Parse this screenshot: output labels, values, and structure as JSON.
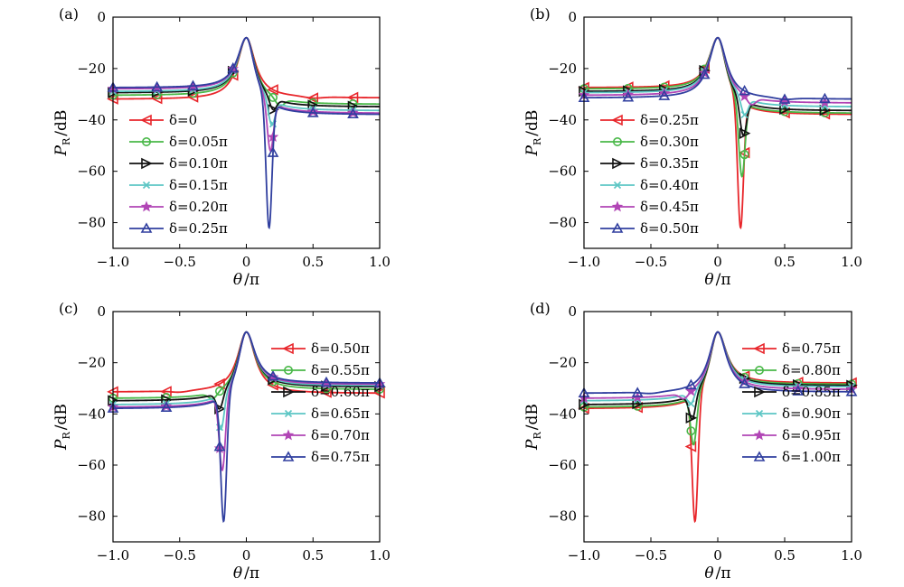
{
  "chart_data": [
    {
      "type": "line",
      "panel_label": "(a)",
      "xlabel": {
        "symbol": "θ",
        "unit": "/π"
      },
      "ylabel": {
        "symbol": "P",
        "subscript": "R",
        "unit": "/dB"
      },
      "xlim": [
        -1.0,
        1.0
      ],
      "ylim": [
        -90,
        0
      ],
      "xticks": [
        "−1.0",
        "−0.5",
        "0",
        "0.5",
        "1.0"
      ],
      "xtick_values": [
        -1.0,
        -0.5,
        0,
        0.5,
        1.0
      ],
      "yticks": [
        "0",
        "−20",
        "−40",
        "−60",
        "−80"
      ],
      "ytick_values": [
        0,
        -20,
        -40,
        -60,
        -80
      ],
      "legend_position": "left",
      "series": [
        {
          "name": "δ=0",
          "color": "#e8262b",
          "marker": "triangle-left",
          "left": -32,
          "right": -31.5,
          "min_x": 0.5,
          "min_y": -31.5,
          "markers_x": [
            -1.0,
            -0.67,
            -0.4,
            -0.1,
            0.2,
            0.5,
            0.8
          ]
        },
        {
          "name": "δ=0.05π",
          "color": "#49b848",
          "marker": "circle",
          "left": -30.5,
          "right": -34,
          "min_x": 0.25,
          "min_y": -34.5,
          "markers_x": [
            -1.0,
            -0.67,
            -0.4,
            -0.1,
            0.2,
            0.5,
            0.8
          ]
        },
        {
          "name": "δ=0.10π",
          "color": "#111111",
          "marker": "triangle-right",
          "left": -29.5,
          "right": -35,
          "min_x": 0.2,
          "min_y": -36,
          "markers_x": [
            -1.0,
            -0.67,
            -0.4,
            -0.1,
            0.2,
            0.5,
            0.8
          ]
        },
        {
          "name": "δ=0.15π",
          "color": "#5cc6c4",
          "marker": "x",
          "left": -29,
          "right": -36.5,
          "min_x": 0.19,
          "min_y": -42,
          "markers_x": [
            -1.0,
            -0.67,
            -0.4,
            -0.1,
            0.2,
            0.5,
            0.8
          ]
        },
        {
          "name": "δ=0.20π",
          "color": "#b145b5",
          "marker": "star",
          "left": -28,
          "right": -37.5,
          "min_x": 0.18,
          "min_y": -52,
          "markers_x": [
            -1.0,
            -0.67,
            -0.4,
            -0.1,
            0.2,
            0.5,
            0.8
          ]
        },
        {
          "name": "δ=0.25π",
          "color": "#303f9f",
          "marker": "triangle-up",
          "left": -27.5,
          "right": -38,
          "min_x": 0.17,
          "min_y": -82,
          "markers_x": [
            -1.0,
            -0.67,
            -0.4,
            -0.1,
            0.2,
            0.5,
            0.8
          ]
        }
      ]
    },
    {
      "type": "line",
      "panel_label": "(b)",
      "xlabel": {
        "symbol": "θ",
        "unit": "/π"
      },
      "ylabel": {
        "symbol": "P",
        "subscript": "R",
        "unit": "/dB"
      },
      "xlim": [
        -1.0,
        1.0
      ],
      "ylim": [
        -90,
        0
      ],
      "xticks": [
        "−1.0",
        "−0.5",
        "0",
        "0.5",
        "1.0"
      ],
      "xtick_values": [
        -1.0,
        -0.5,
        0,
        0.5,
        1.0
      ],
      "yticks": [
        "0",
        "−20",
        "−40",
        "−60",
        "−80"
      ],
      "ytick_values": [
        0,
        -20,
        -40,
        -60,
        -80
      ],
      "legend_position": "left",
      "series": [
        {
          "name": "δ=0.25π",
          "color": "#e8262b",
          "marker": "triangle-left",
          "left": -27.5,
          "right": -38,
          "min_x": 0.17,
          "min_y": -82,
          "markers_x": [
            -1.0,
            -0.67,
            -0.4,
            -0.1,
            0.2,
            0.5,
            0.8
          ]
        },
        {
          "name": "δ=0.30π",
          "color": "#49b848",
          "marker": "circle",
          "left": -28,
          "right": -37.5,
          "min_x": 0.18,
          "min_y": -62,
          "markers_x": [
            -1.0,
            -0.67,
            -0.4,
            -0.1,
            0.2,
            0.5,
            0.8
          ]
        },
        {
          "name": "δ=0.35π",
          "color": "#111111",
          "marker": "triangle-right",
          "left": -29,
          "right": -36.5,
          "min_x": 0.19,
          "min_y": -46,
          "markers_x": [
            -1.0,
            -0.67,
            -0.4,
            -0.1,
            0.2,
            0.5,
            0.8
          ]
        },
        {
          "name": "δ=0.40π",
          "color": "#5cc6c4",
          "marker": "x",
          "left": -29.5,
          "right": -35,
          "min_x": 0.2,
          "min_y": -38,
          "markers_x": [
            -1.0,
            -0.67,
            -0.4,
            -0.1,
            0.2,
            0.5,
            0.8
          ]
        },
        {
          "name": "δ=0.45π",
          "color": "#b145b5",
          "marker": "star",
          "left": -30.5,
          "right": -33.5,
          "min_x": 0.25,
          "min_y": -34,
          "markers_x": [
            -1.0,
            -0.67,
            -0.4,
            -0.1,
            0.2,
            0.5,
            0.8
          ]
        },
        {
          "name": "δ=0.50π",
          "color": "#303f9f",
          "marker": "triangle-up",
          "left": -31.5,
          "right": -32,
          "min_x": 0.5,
          "min_y": -32,
          "markers_x": [
            -1.0,
            -0.67,
            -0.4,
            -0.1,
            0.2,
            0.5,
            0.8
          ]
        }
      ]
    },
    {
      "type": "line",
      "panel_label": "(c)",
      "xlabel": {
        "symbol": "θ",
        "unit": "/π"
      },
      "ylabel": {
        "symbol": "P",
        "subscript": "R",
        "unit": "/dB"
      },
      "xlim": [
        -1.0,
        1.0
      ],
      "ylim": [
        -90,
        0
      ],
      "xticks": [
        "−1.0",
        "−0.5",
        "0",
        "0.5",
        "1.0"
      ],
      "xtick_values": [
        -1.0,
        -0.5,
        0,
        0.5,
        1.0
      ],
      "yticks": [
        "0",
        "−20",
        "−40",
        "−60",
        "−80"
      ],
      "ytick_values": [
        0,
        -20,
        -40,
        -60,
        -80
      ],
      "legend_position": "right",
      "series": [
        {
          "name": "δ=0.50π",
          "color": "#e8262b",
          "marker": "triangle-left",
          "left": -31.5,
          "right": -32,
          "min_x": -0.5,
          "min_y": -31.5,
          "markers_x": [
            -1.0,
            -0.6,
            -0.2,
            0.2,
            0.6,
            1.0
          ]
        },
        {
          "name": "δ=0.55π",
          "color": "#49b848",
          "marker": "circle",
          "left": -34,
          "right": -30.5,
          "min_x": -0.25,
          "min_y": -34,
          "markers_x": [
            -1.0,
            -0.6,
            -0.2,
            0.2,
            0.6,
            1.0
          ]
        },
        {
          "name": "δ=0.60π",
          "color": "#111111",
          "marker": "triangle-right",
          "left": -35,
          "right": -29.5,
          "min_x": -0.2,
          "min_y": -38,
          "markers_x": [
            -1.0,
            -0.6,
            -0.2,
            0.2,
            0.6,
            1.0
          ]
        },
        {
          "name": "δ=0.65π",
          "color": "#5cc6c4",
          "marker": "x",
          "left": -36.5,
          "right": -29,
          "min_x": -0.19,
          "min_y": -46,
          "markers_x": [
            -1.0,
            -0.6,
            -0.2,
            0.2,
            0.6,
            1.0
          ]
        },
        {
          "name": "δ=0.70π",
          "color": "#b145b5",
          "marker": "star",
          "left": -37.5,
          "right": -28.5,
          "min_x": -0.18,
          "min_y": -62,
          "markers_x": [
            -1.0,
            -0.6,
            -0.2,
            0.2,
            0.6,
            1.0
          ]
        },
        {
          "name": "δ=0.75π",
          "color": "#303f9f",
          "marker": "triangle-up",
          "left": -38,
          "right": -28,
          "min_x": -0.17,
          "min_y": -82,
          "markers_x": [
            -1.0,
            -0.6,
            -0.2,
            0.2,
            0.6,
            1.0
          ]
        }
      ]
    },
    {
      "type": "line",
      "panel_label": "(d)",
      "xlabel": {
        "symbol": "θ",
        "unit": "/π"
      },
      "ylabel": {
        "symbol": "P",
        "subscript": "R",
        "unit": "/dB"
      },
      "xlim": [
        -1.0,
        1.0
      ],
      "ylim": [
        -90,
        0
      ],
      "xticks": [
        "−1.0",
        "−0.5",
        "0",
        "0.5",
        "1.0"
      ],
      "xtick_values": [
        -1.0,
        -0.5,
        0,
        0.5,
        1.0
      ],
      "yticks": [
        "0",
        "−20",
        "−40",
        "−60",
        "−80"
      ],
      "ytick_values": [
        0,
        -20,
        -40,
        -60,
        -80
      ],
      "legend_position": "right",
      "series": [
        {
          "name": "δ=0.75π",
          "color": "#e8262b",
          "marker": "triangle-left",
          "left": -38,
          "right": -28,
          "min_x": -0.17,
          "min_y": -82,
          "markers_x": [
            -1.0,
            -0.6,
            -0.2,
            0.2,
            0.6,
            1.0
          ]
        },
        {
          "name": "δ=0.80π",
          "color": "#49b848",
          "marker": "circle",
          "left": -37.5,
          "right": -28.5,
          "min_x": -0.18,
          "min_y": -52,
          "markers_x": [
            -1.0,
            -0.6,
            -0.2,
            0.2,
            0.6,
            1.0
          ]
        },
        {
          "name": "δ=0.85π",
          "color": "#111111",
          "marker": "triangle-right",
          "left": -36.5,
          "right": -29,
          "min_x": -0.19,
          "min_y": -42,
          "markers_x": [
            -1.0,
            -0.6,
            -0.2,
            0.2,
            0.6,
            1.0
          ]
        },
        {
          "name": "δ=0.90π",
          "color": "#5cc6c4",
          "marker": "x",
          "left": -35,
          "right": -29.5,
          "min_x": -0.2,
          "min_y": -36,
          "markers_x": [
            -1.0,
            -0.6,
            -0.2,
            0.2,
            0.6,
            1.0
          ]
        },
        {
          "name": "δ=0.95π",
          "color": "#b145b5",
          "marker": "star",
          "left": -34,
          "right": -30.5,
          "min_x": -0.25,
          "min_y": -34,
          "markers_x": [
            -1.0,
            -0.6,
            -0.2,
            0.2,
            0.6,
            1.0
          ]
        },
        {
          "name": "δ=1.00π",
          "color": "#303f9f",
          "marker": "triangle-up",
          "left": -32,
          "right": -31.5,
          "min_x": -0.5,
          "min_y": -32,
          "markers_x": [
            -1.0,
            -0.6,
            -0.2,
            0.2,
            0.6,
            1.0
          ]
        }
      ],
      "peak": {
        "x": 0,
        "y": -8
      }
    }
  ],
  "peak": {
    "x": 0,
    "y": -8
  }
}
